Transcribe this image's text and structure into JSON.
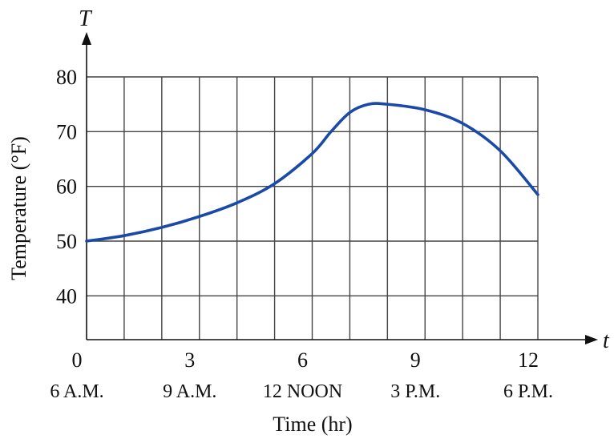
{
  "chart_data": {
    "type": "line",
    "xlabel": "Time (hr)",
    "ylabel": "Temperature (°F)",
    "x_axis_var": "t",
    "y_axis_var": "T",
    "xlim": [
      0,
      12
    ],
    "ylim": [
      32,
      80
    ],
    "x_ticks": [
      0,
      3,
      6,
      9,
      12
    ],
    "x_tick_labels": [
      "0",
      "3",
      "6",
      "9",
      "12"
    ],
    "x_time_labels": [
      "6 A.M.",
      "9 A.M.",
      "12 NOON",
      "3 P.M.",
      "6 P.M."
    ],
    "y_ticks": [
      40,
      50,
      60,
      70,
      80
    ],
    "y_tick_labels": [
      "40",
      "50",
      "60",
      "70",
      "80"
    ],
    "grid": true,
    "line_color": "#1a4aa8",
    "series": [
      {
        "x": [
          0,
          1,
          2,
          3,
          4,
          5,
          6,
          6.5,
          7,
          7.5,
          8,
          9,
          10,
          11,
          12
        ],
        "values": [
          50,
          51,
          52.5,
          54.5,
          57,
          60.5,
          66,
          70,
          73.5,
          75,
          75,
          74,
          71.5,
          66.5,
          58.5
        ]
      }
    ]
  }
}
